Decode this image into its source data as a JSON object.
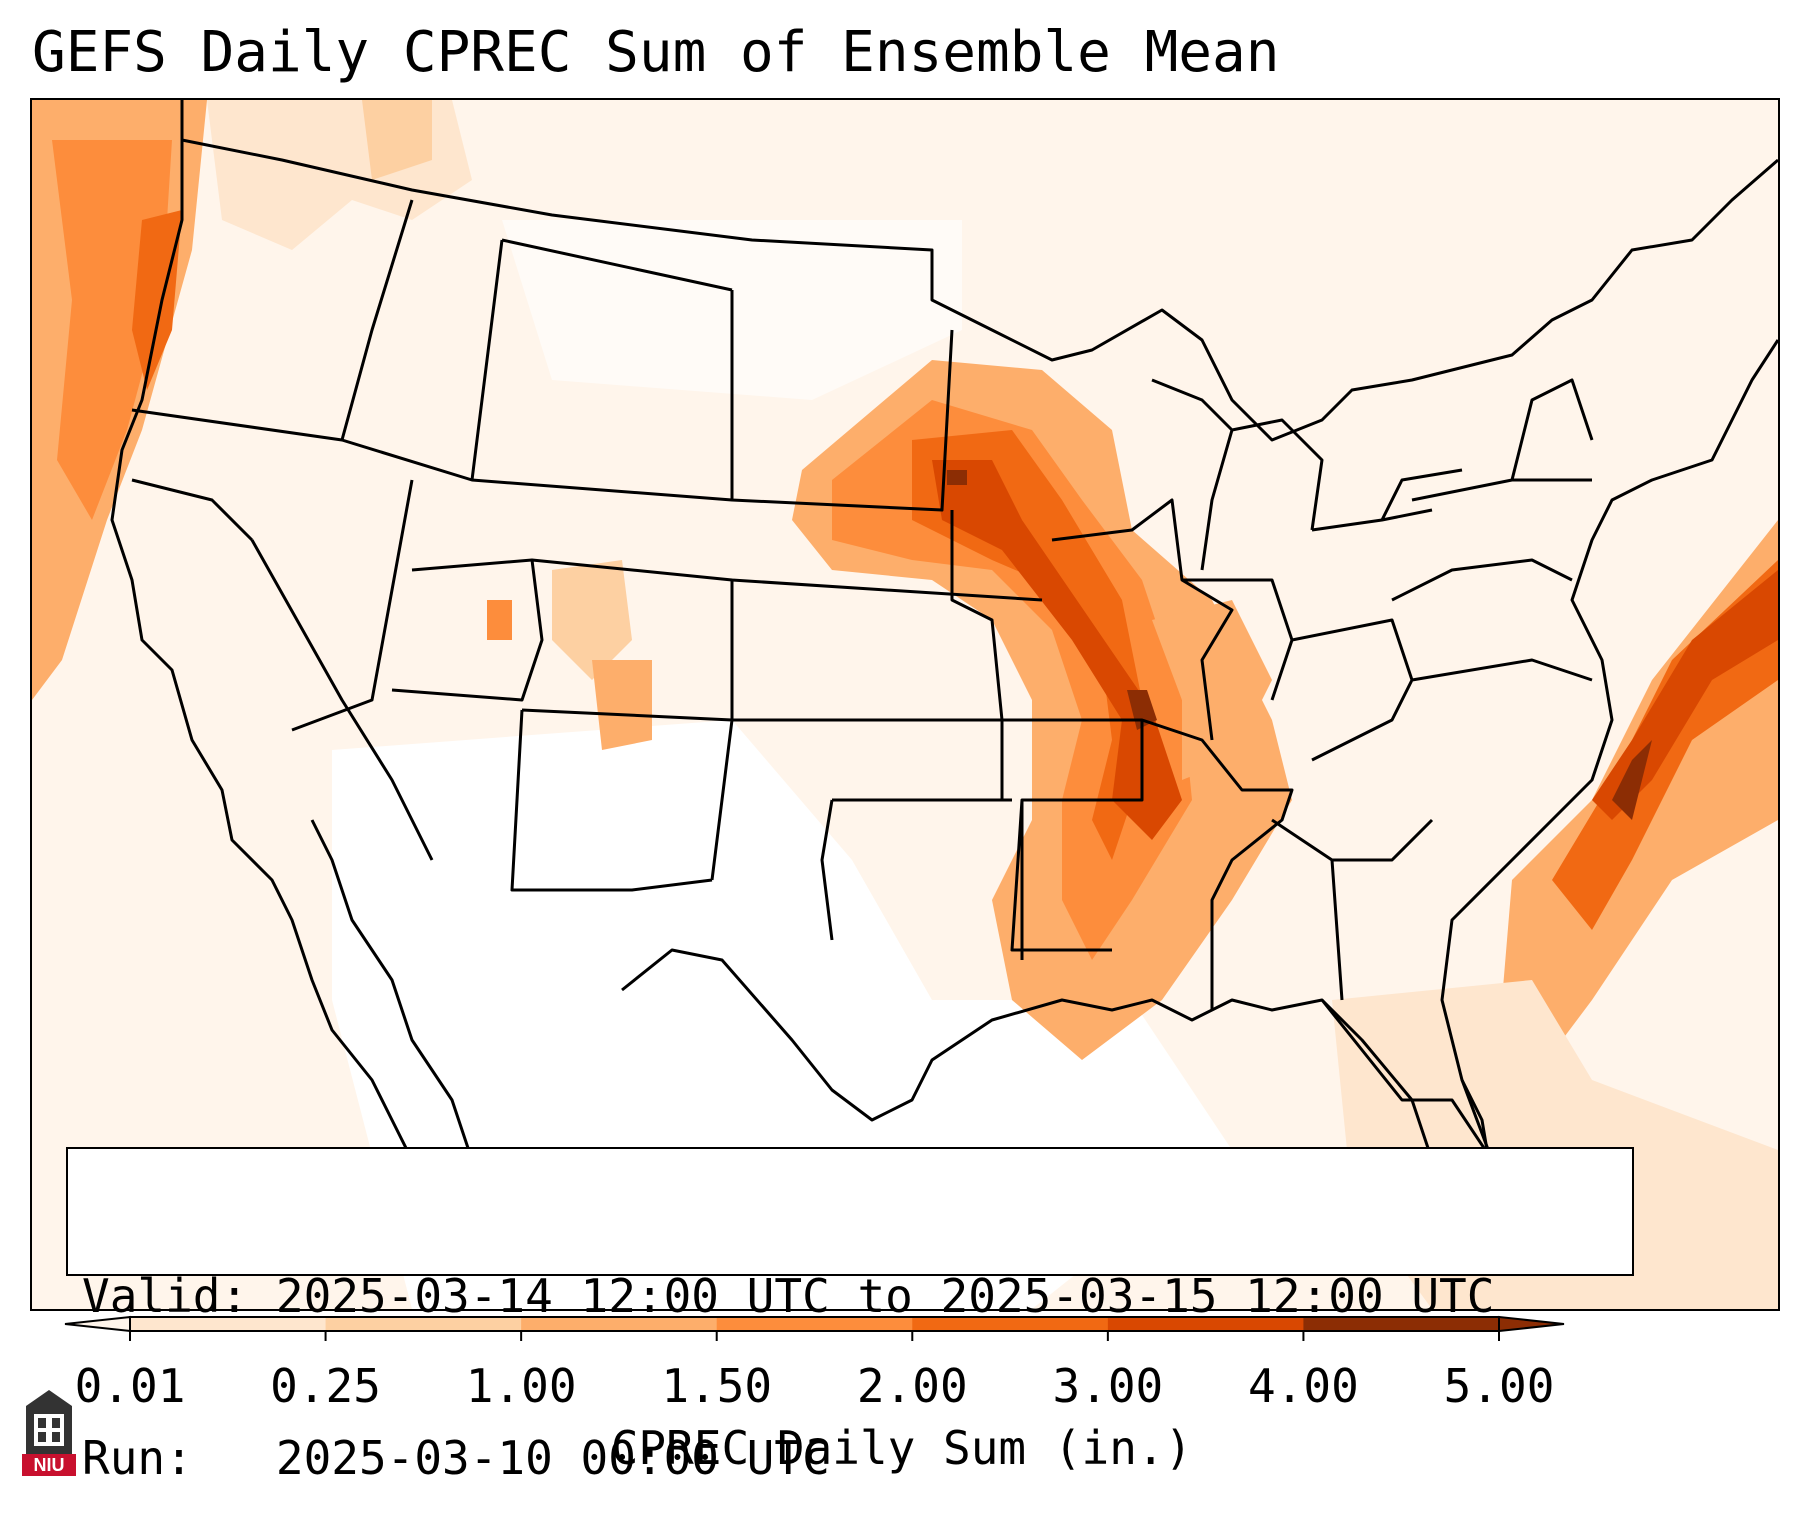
{
  "title": "GEFS Daily CPREC Sum of Ensemble Mean",
  "info": {
    "valid_label": "Valid:",
    "valid_value": "2025-03-14 12:00 UTC to 2025-03-15 12:00 UTC",
    "run_label": "Run:",
    "run_value": "2025-03-10 00:00 UTC"
  },
  "colorbar": {
    "label": "CPREC Daily Sum (in.)",
    "ticks": [
      "0.01",
      "0.25",
      "1.00",
      "1.50",
      "2.00",
      "3.00",
      "4.00",
      "5.00"
    ],
    "colors": [
      "#fff5eb",
      "#fee6ce",
      "#fdd0a2",
      "#fdae6b",
      "#fd8d3c",
      "#f16913",
      "#d94801",
      "#8c2d04"
    ],
    "extend": "both"
  },
  "map": {
    "region": "CONUS",
    "background_color": "#ffffff",
    "boundary_color": "#000000"
  },
  "logo": {
    "name": "niu-logo",
    "text": "NIU",
    "color": "#c8102e"
  }
}
